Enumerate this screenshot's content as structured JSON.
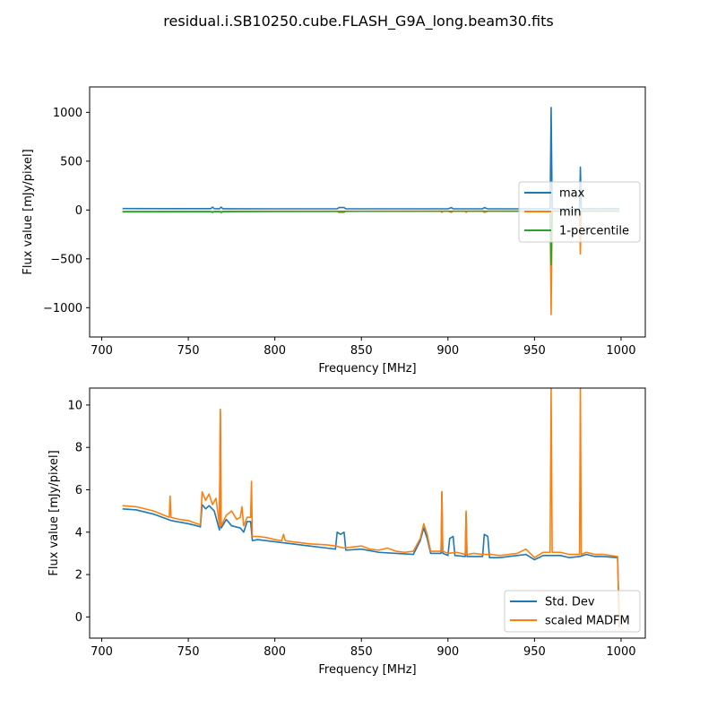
{
  "figure": {
    "title": "residual.i.SB10250.cube.FLASH_G9A_long.beam30.fits"
  },
  "chart_data": [
    {
      "type": "line",
      "xlabel": "Frequency [MHz]",
      "ylabel": "Flux value [mJy/pixel]",
      "xlim": [
        693,
        1014
      ],
      "ylim": [
        -1300,
        1260
      ],
      "x_ticks": [
        700,
        750,
        800,
        850,
        900,
        950,
        1000
      ],
      "y_ticks": [
        -1000,
        -500,
        0,
        500,
        1000
      ],
      "legend_position": "center-right",
      "series": [
        {
          "name": "max",
          "color": "#1f77b4",
          "points": [
            [
              712,
              15
            ],
            [
              740,
              14
            ],
            [
              763,
              14
            ],
            [
              764,
              30
            ],
            [
              765,
              14
            ],
            [
              768,
              13
            ],
            [
              769,
              30
            ],
            [
              770,
              13
            ],
            [
              800,
              12
            ],
            [
              836,
              12
            ],
            [
              837,
              25
            ],
            [
              840,
              25
            ],
            [
              841,
              12
            ],
            [
              880,
              12
            ],
            [
              900,
              12
            ],
            [
              902,
              25
            ],
            [
              903,
              12
            ],
            [
              920,
              12
            ],
            [
              921,
              25
            ],
            [
              923,
              12
            ],
            [
              940,
              12
            ],
            [
              959,
              12
            ],
            [
              959.6,
              1050
            ],
            [
              960.2,
              12
            ],
            [
              976,
              12
            ],
            [
              976.5,
              440
            ],
            [
              977,
              12
            ],
            [
              999,
              12
            ]
          ]
        },
        {
          "name": "min",
          "color": "#ff7f0e",
          "points": [
            [
              712,
              -14
            ],
            [
              740,
              -13
            ],
            [
              763,
              -13
            ],
            [
              764,
              -28
            ],
            [
              765,
              -13
            ],
            [
              768,
              -13
            ],
            [
              769,
              -30
            ],
            [
              770,
              -13
            ],
            [
              800,
              -12
            ],
            [
              836,
              -12
            ],
            [
              837,
              -25
            ],
            [
              840,
              -25
            ],
            [
              841,
              -12
            ],
            [
              880,
              -12
            ],
            [
              896,
              -12
            ],
            [
              896.5,
              -25
            ],
            [
              897,
              -12
            ],
            [
              900,
              -12
            ],
            [
              902,
              -25
            ],
            [
              903,
              -12
            ],
            [
              910,
              -12
            ],
            [
              910.5,
              -25
            ],
            [
              911,
              -12
            ],
            [
              920,
              -12
            ],
            [
              921,
              -25
            ],
            [
              923,
              -12
            ],
            [
              940,
              -12
            ],
            [
              959,
              -12
            ],
            [
              959.6,
              -1070
            ],
            [
              960.2,
              -12
            ],
            [
              976,
              -12
            ],
            [
              976.5,
              -450
            ],
            [
              977,
              -12
            ],
            [
              999,
              -12
            ]
          ]
        },
        {
          "name": "1-percentile",
          "color": "#2ca02c",
          "points": [
            [
              712,
              -20
            ],
            [
              760,
              -18
            ],
            [
              800,
              -15
            ],
            [
              850,
              -13
            ],
            [
              900,
              -12
            ],
            [
              950,
              -11
            ],
            [
              959,
              -11
            ],
            [
              959.6,
              -560
            ],
            [
              960.2,
              -11
            ],
            [
              976,
              -11
            ],
            [
              976.5,
              -60
            ],
            [
              977,
              -11
            ],
            [
              999,
              -10
            ]
          ]
        }
      ]
    },
    {
      "type": "line",
      "xlabel": "Frequency [MHz]",
      "ylabel": "Flux value [mJy/pixel]",
      "xlim": [
        693,
        1014
      ],
      "ylim": [
        -1,
        10.8
      ],
      "x_ticks": [
        700,
        750,
        800,
        850,
        900,
        950,
        1000
      ],
      "y_ticks": [
        0,
        2,
        4,
        6,
        8,
        10
      ],
      "legend_position": "lower-right",
      "series": [
        {
          "name": "Std. Dev",
          "color": "#1f77b4",
          "points": [
            [
              712,
              5.1
            ],
            [
              720,
              5.05
            ],
            [
              730,
              4.85
            ],
            [
              740,
              4.55
            ],
            [
              750,
              4.4
            ],
            [
              755,
              4.3
            ],
            [
              757,
              4.25
            ],
            [
              758,
              5.3
            ],
            [
              760,
              5.1
            ],
            [
              762,
              5.25
            ],
            [
              765,
              5.0
            ],
            [
              768,
              4.1
            ],
            [
              768.5,
              9.7
            ],
            [
              769,
              4.2
            ],
            [
              772,
              4.6
            ],
            [
              775,
              4.3
            ],
            [
              780,
              4.2
            ],
            [
              782,
              4.0
            ],
            [
              784,
              4.5
            ],
            [
              786,
              4.5
            ],
            [
              787,
              3.6
            ],
            [
              790,
              3.65
            ],
            [
              800,
              3.55
            ],
            [
              810,
              3.45
            ],
            [
              820,
              3.35
            ],
            [
              830,
              3.25
            ],
            [
              835,
              3.2
            ],
            [
              836,
              4.0
            ],
            [
              838,
              3.9
            ],
            [
              840,
              4.0
            ],
            [
              841,
              3.15
            ],
            [
              850,
              3.2
            ],
            [
              860,
              3.05
            ],
            [
              870,
              3.0
            ],
            [
              880,
              2.95
            ],
            [
              884,
              3.6
            ],
            [
              886,
              4.2
            ],
            [
              888,
              3.7
            ],
            [
              890,
              3.0
            ],
            [
              896,
              3.0
            ],
            [
              896.5,
              5.9
            ],
            [
              897,
              3.0
            ],
            [
              900,
              2.9
            ],
            [
              901,
              3.7
            ],
            [
              903,
              3.8
            ],
            [
              904,
              2.9
            ],
            [
              910,
              2.85
            ],
            [
              910.5,
              4.9
            ],
            [
              911,
              2.85
            ],
            [
              915,
              2.85
            ],
            [
              920,
              2.85
            ],
            [
              921,
              3.9
            ],
            [
              923,
              3.8
            ],
            [
              924,
              2.8
            ],
            [
              930,
              2.8
            ],
            [
              935,
              2.85
            ],
            [
              940,
              2.9
            ],
            [
              945,
              2.95
            ],
            [
              950,
              2.7
            ],
            [
              955,
              2.9
            ],
            [
              959,
              2.9
            ],
            [
              959.6,
              2.9
            ],
            [
              965,
              2.9
            ],
            [
              970,
              2.8
            ],
            [
              976,
              2.85
            ],
            [
              980,
              2.95
            ],
            [
              985,
              2.85
            ],
            [
              990,
              2.85
            ],
            [
              998,
              2.8
            ],
            [
              999,
              -0.5
            ]
          ]
        },
        {
          "name": "scaled MADFM",
          "color": "#ff7f0e",
          "points": [
            [
              712,
              5.25
            ],
            [
              720,
              5.2
            ],
            [
              730,
              5.0
            ],
            [
              739,
              4.7
            ],
            [
              739.5,
              5.7
            ],
            [
              740,
              4.7
            ],
            [
              745,
              4.6
            ],
            [
              750,
              4.55
            ],
            [
              755,
              4.4
            ],
            [
              757,
              4.35
            ],
            [
              758,
              5.9
            ],
            [
              760,
              5.5
            ],
            [
              762,
              5.8
            ],
            [
              764,
              5.3
            ],
            [
              766,
              5.6
            ],
            [
              768,
              4.3
            ],
            [
              768.5,
              9.8
            ],
            [
              769,
              4.3
            ],
            [
              772,
              4.8
            ],
            [
              775,
              5.0
            ],
            [
              778,
              4.6
            ],
            [
              780,
              4.7
            ],
            [
              781,
              5.2
            ],
            [
              782,
              4.3
            ],
            [
              784,
              4.7
            ],
            [
              786,
              4.7
            ],
            [
              786.5,
              6.4
            ],
            [
              787,
              3.8
            ],
            [
              790,
              3.8
            ],
            [
              795,
              3.75
            ],
            [
              800,
              3.65
            ],
            [
              804,
              3.6
            ],
            [
              805,
              3.9
            ],
            [
              806,
              3.6
            ],
            [
              810,
              3.55
            ],
            [
              815,
              3.5
            ],
            [
              820,
              3.45
            ],
            [
              830,
              3.4
            ],
            [
              835,
              3.35
            ],
            [
              840,
              3.25
            ],
            [
              845,
              3.3
            ],
            [
              850,
              3.35
            ],
            [
              855,
              3.2
            ],
            [
              860,
              3.15
            ],
            [
              865,
              3.25
            ],
            [
              870,
              3.1
            ],
            [
              875,
              3.05
            ],
            [
              880,
              3.1
            ],
            [
              884,
              3.7
            ],
            [
              886,
              4.4
            ],
            [
              888,
              3.9
            ],
            [
              890,
              3.1
            ],
            [
              895,
              3.1
            ],
            [
              896,
              3.1
            ],
            [
              896.5,
              5.9
            ],
            [
              897,
              3.1
            ],
            [
              900,
              3.0
            ],
            [
              905,
              3.05
            ],
            [
              910,
              2.95
            ],
            [
              910.5,
              5.0
            ],
            [
              911,
              2.95
            ],
            [
              915,
              3.0
            ],
            [
              920,
              2.95
            ],
            [
              925,
              2.95
            ],
            [
              930,
              2.9
            ],
            [
              935,
              2.95
            ],
            [
              940,
              3.0
            ],
            [
              945,
              3.2
            ],
            [
              950,
              2.8
            ],
            [
              955,
              3.05
            ],
            [
              959,
              3.05
            ],
            [
              959.6,
              10.8
            ],
            [
              960.2,
              3.05
            ],
            [
              965,
              3.05
            ],
            [
              970,
              2.95
            ],
            [
              976,
              2.95
            ],
            [
              976.5,
              10.8
            ],
            [
              977,
              2.95
            ],
            [
              980,
              3.05
            ],
            [
              985,
              2.95
            ],
            [
              990,
              2.95
            ],
            [
              998,
              2.85
            ],
            [
              999,
              -0.5
            ]
          ]
        }
      ]
    }
  ]
}
